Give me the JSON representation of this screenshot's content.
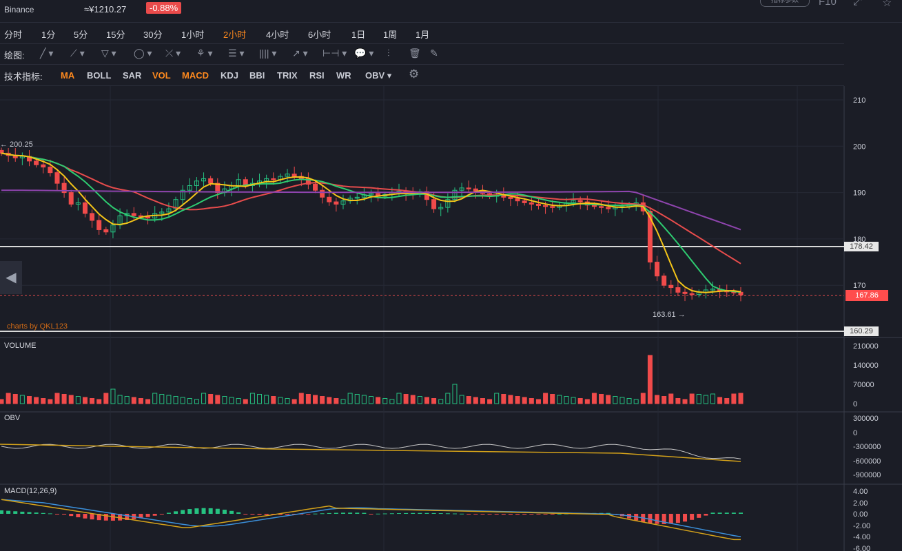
{
  "header": {
    "exchange": "Binance",
    "cny_price": "≈¥1210.27",
    "change_pct": "-0.88%",
    "top_button": "指标参数",
    "f10": "F10"
  },
  "timeframes": [
    "分时",
    "1分",
    "5分",
    "15分",
    "30分",
    "1小时",
    "2小时",
    "4小时",
    "6小时",
    "1日",
    "1周",
    "1月"
  ],
  "active_timeframe": "2小时",
  "drawing": {
    "label": "绘图:"
  },
  "indicators": {
    "label": "技术指标:",
    "items": [
      "MA",
      "BOLL",
      "SAR",
      "VOL",
      "MACD",
      "KDJ",
      "BBI",
      "TRIX",
      "RSI",
      "WR",
      "OBV"
    ],
    "active": [
      "MA",
      "VOL",
      "MACD"
    ]
  },
  "price_axis": {
    "ticks": [
      "210",
      "200",
      "190",
      "180",
      "170"
    ]
  },
  "price_lines": {
    "upper": "178.42",
    "current": "167.86",
    "lower": "160.29"
  },
  "labels": {
    "high": "← 200.25",
    "low": "163.61 →",
    "watermark": "charts by QKL123"
  },
  "volume_panel": {
    "title": "VOLUME",
    "ticks": [
      "210000",
      "140000",
      "70000",
      "0"
    ]
  },
  "obv_panel": {
    "title": "OBV",
    "ticks": [
      "300000",
      "0",
      "-300000",
      "-600000",
      "-900000"
    ]
  },
  "macd_panel": {
    "title": "MACD(12,26,9)",
    "ticks": [
      "4.00",
      "2.00",
      "0.00",
      "-2.00",
      "-4.00",
      "-6.00"
    ]
  },
  "colors": {
    "up": "#26c281",
    "down": "#f04b4b",
    "ma5": "#f5c518",
    "ma10": "#2ecc71",
    "ma20": "#e74c4c",
    "ma60": "#8e44ad",
    "accent": "#ff8a1e"
  },
  "chart_data": {
    "type": "candlestick",
    "closes": [
      198.5,
      198,
      197.5,
      197.8,
      196.8,
      196,
      195.5,
      194.3,
      192,
      190,
      187.5,
      187.8,
      185.5,
      184,
      182,
      181.5,
      183,
      185,
      185.5,
      185,
      184.8,
      184.5,
      185.5,
      185.8,
      186.5,
      188.5,
      190.5,
      191.5,
      192.5,
      193,
      192,
      190,
      190.8,
      191.5,
      192.8,
      191.5,
      192,
      192.5,
      193,
      192.8,
      193.5,
      194,
      193.5,
      193,
      191.8,
      190.5,
      189,
      188,
      187.5,
      188.2,
      188.8,
      189,
      189.5,
      189.8,
      189.2,
      189.6,
      190,
      190.3,
      189.8,
      189.6,
      190.2,
      188.5,
      186.5,
      186.8,
      188.5,
      190.5,
      191,
      190.8,
      190.3,
      189.8,
      189.2,
      189.5,
      189,
      188.7,
      188.2,
      187.8,
      187.5,
      187.2,
      187,
      186.8,
      187.2,
      187.8,
      188.3,
      188,
      187.3,
      187,
      186.8,
      186.5,
      186.8,
      187,
      187.4,
      187.8,
      186,
      175,
      172,
      170,
      169.5,
      168.5,
      168.2,
      168,
      168.5,
      169,
      169.2,
      168.8,
      168.6,
      168.5,
      167.9
    ],
    "ma60_end": 182,
    "volume_max_label": "210000"
  }
}
